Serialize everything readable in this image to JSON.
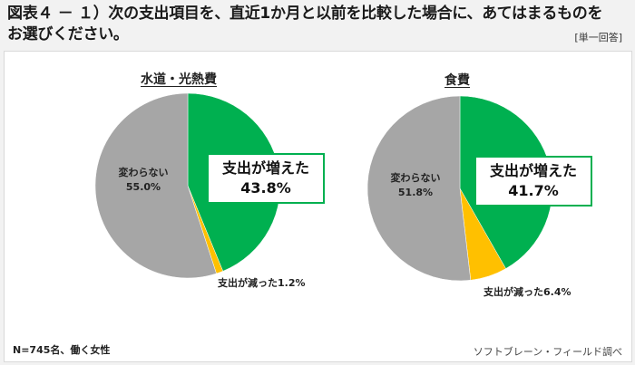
{
  "header": {
    "title_line1": "図表４ － １）次の支出項目を、直近1か月と以前を比較した場合に、あてはまるものを",
    "title_line2": "お選びください。",
    "answer_type": "[単一回答]"
  },
  "footer": {
    "note": "N=745名、働く女性",
    "source": "ソフトブレーン・フィールド調べ"
  },
  "colors": {
    "increased": "#00b050",
    "decreased": "#ffc000",
    "unchanged": "#a6a6a6"
  },
  "charts": [
    {
      "title": "水道・光熱費",
      "increased_label": "支出が増えた",
      "increased_value": "43.8%",
      "unchanged_label": "変わらない",
      "unchanged_value": "55.0%",
      "decreased_label": "支出が減った1.2%"
    },
    {
      "title": "食費",
      "increased_label": "支出が増えた",
      "increased_value": "41.7%",
      "unchanged_label": "変わらない",
      "unchanged_value": "51.8%",
      "decreased_label": "支出が減った6.4%"
    }
  ],
  "chart_data": [
    {
      "type": "pie",
      "title": "水道・光熱費",
      "categories": [
        "支出が増えた",
        "支出が減った",
        "変わらない"
      ],
      "values": [
        43.8,
        1.2,
        55.0
      ],
      "colors": [
        "#00b050",
        "#ffc000",
        "#a6a6a6"
      ],
      "unit": "%"
    },
    {
      "type": "pie",
      "title": "食費",
      "categories": [
        "支出が増えた",
        "支出が減った",
        "変わらない"
      ],
      "values": [
        41.7,
        6.4,
        51.8
      ],
      "colors": [
        "#00b050",
        "#ffc000",
        "#a6a6a6"
      ],
      "unit": "%"
    }
  ]
}
